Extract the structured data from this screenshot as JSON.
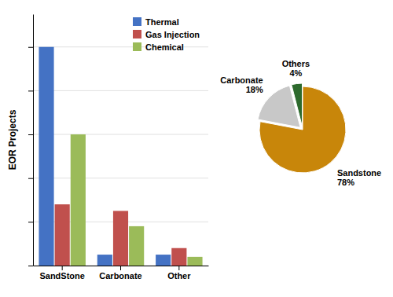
{
  "chart_data": [
    {
      "type": "bar",
      "categories": [
        "SandStone",
        "Carbonate",
        "Other"
      ],
      "series": [
        {
          "name": "Thermal",
          "color": "#4472C4",
          "values": [
            100,
            5,
            5
          ]
        },
        {
          "name": "Gas Injection",
          "color": "#C0504D",
          "values": [
            28,
            25,
            8
          ]
        },
        {
          "name": "Chemical",
          "color": "#9BBB59",
          "values": [
            60,
            18,
            4
          ]
        }
      ],
      "ylabel": "EOR Projects",
      "ylim": [
        0,
        115
      ],
      "yticks": [
        0,
        20,
        40,
        60,
        80,
        100
      ],
      "grid": true,
      "tick_labels": "x",
      "legend": "upper right"
    },
    {
      "type": "pie",
      "categories": [
        "Sandstone",
        "Carbonate",
        "Others"
      ],
      "values": [
        78,
        18,
        4
      ],
      "value_labels": [
        "78%",
        "18%",
        "4%"
      ],
      "colors": [
        "#C8860A",
        "#C8C8C8",
        "#2D6A2D"
      ],
      "data_labels": true
    }
  ]
}
